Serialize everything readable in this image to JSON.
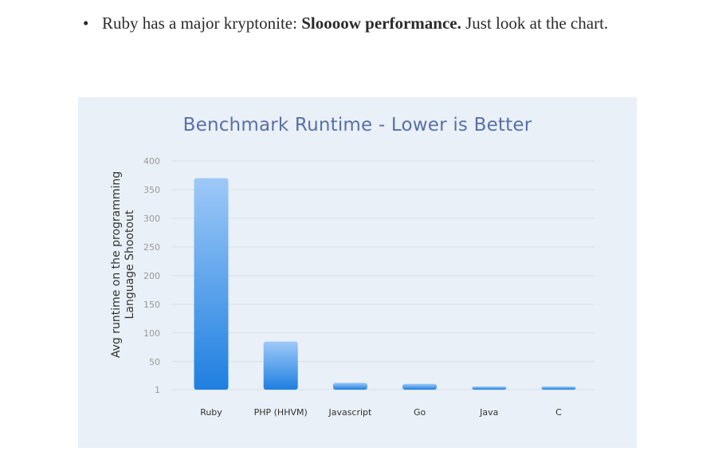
{
  "article": {
    "bullet_symbol": "•",
    "text_before": "Ruby has a major kryptonite: ",
    "text_bold": "Sloooow performance.",
    "text_after": " Just look at the chart."
  },
  "chart_data": {
    "type": "bar",
    "title": "Benchmark Runtime - Lower is Better",
    "ylabel": "Avg runtime on the programming Language Shootout",
    "xlabel": "",
    "categories": [
      "Ruby",
      "PHP (HHVM)",
      "Javascript",
      "Go",
      "Java",
      "C"
    ],
    "values": [
      370,
      85,
      13,
      11,
      6,
      6
    ],
    "ylim": [
      1,
      400
    ],
    "yticks": [
      1,
      50,
      100,
      150,
      200,
      250,
      300,
      350,
      400
    ],
    "grid": true,
    "colors": {
      "panel_bg": "#e9f0f7",
      "bar_top": "#9ec9f7",
      "bar_bottom": "#1f7fe0",
      "grid": "#d7dee6",
      "title": "#5a6fa8",
      "tick_text": "#999999",
      "category_text": "#333333"
    }
  }
}
